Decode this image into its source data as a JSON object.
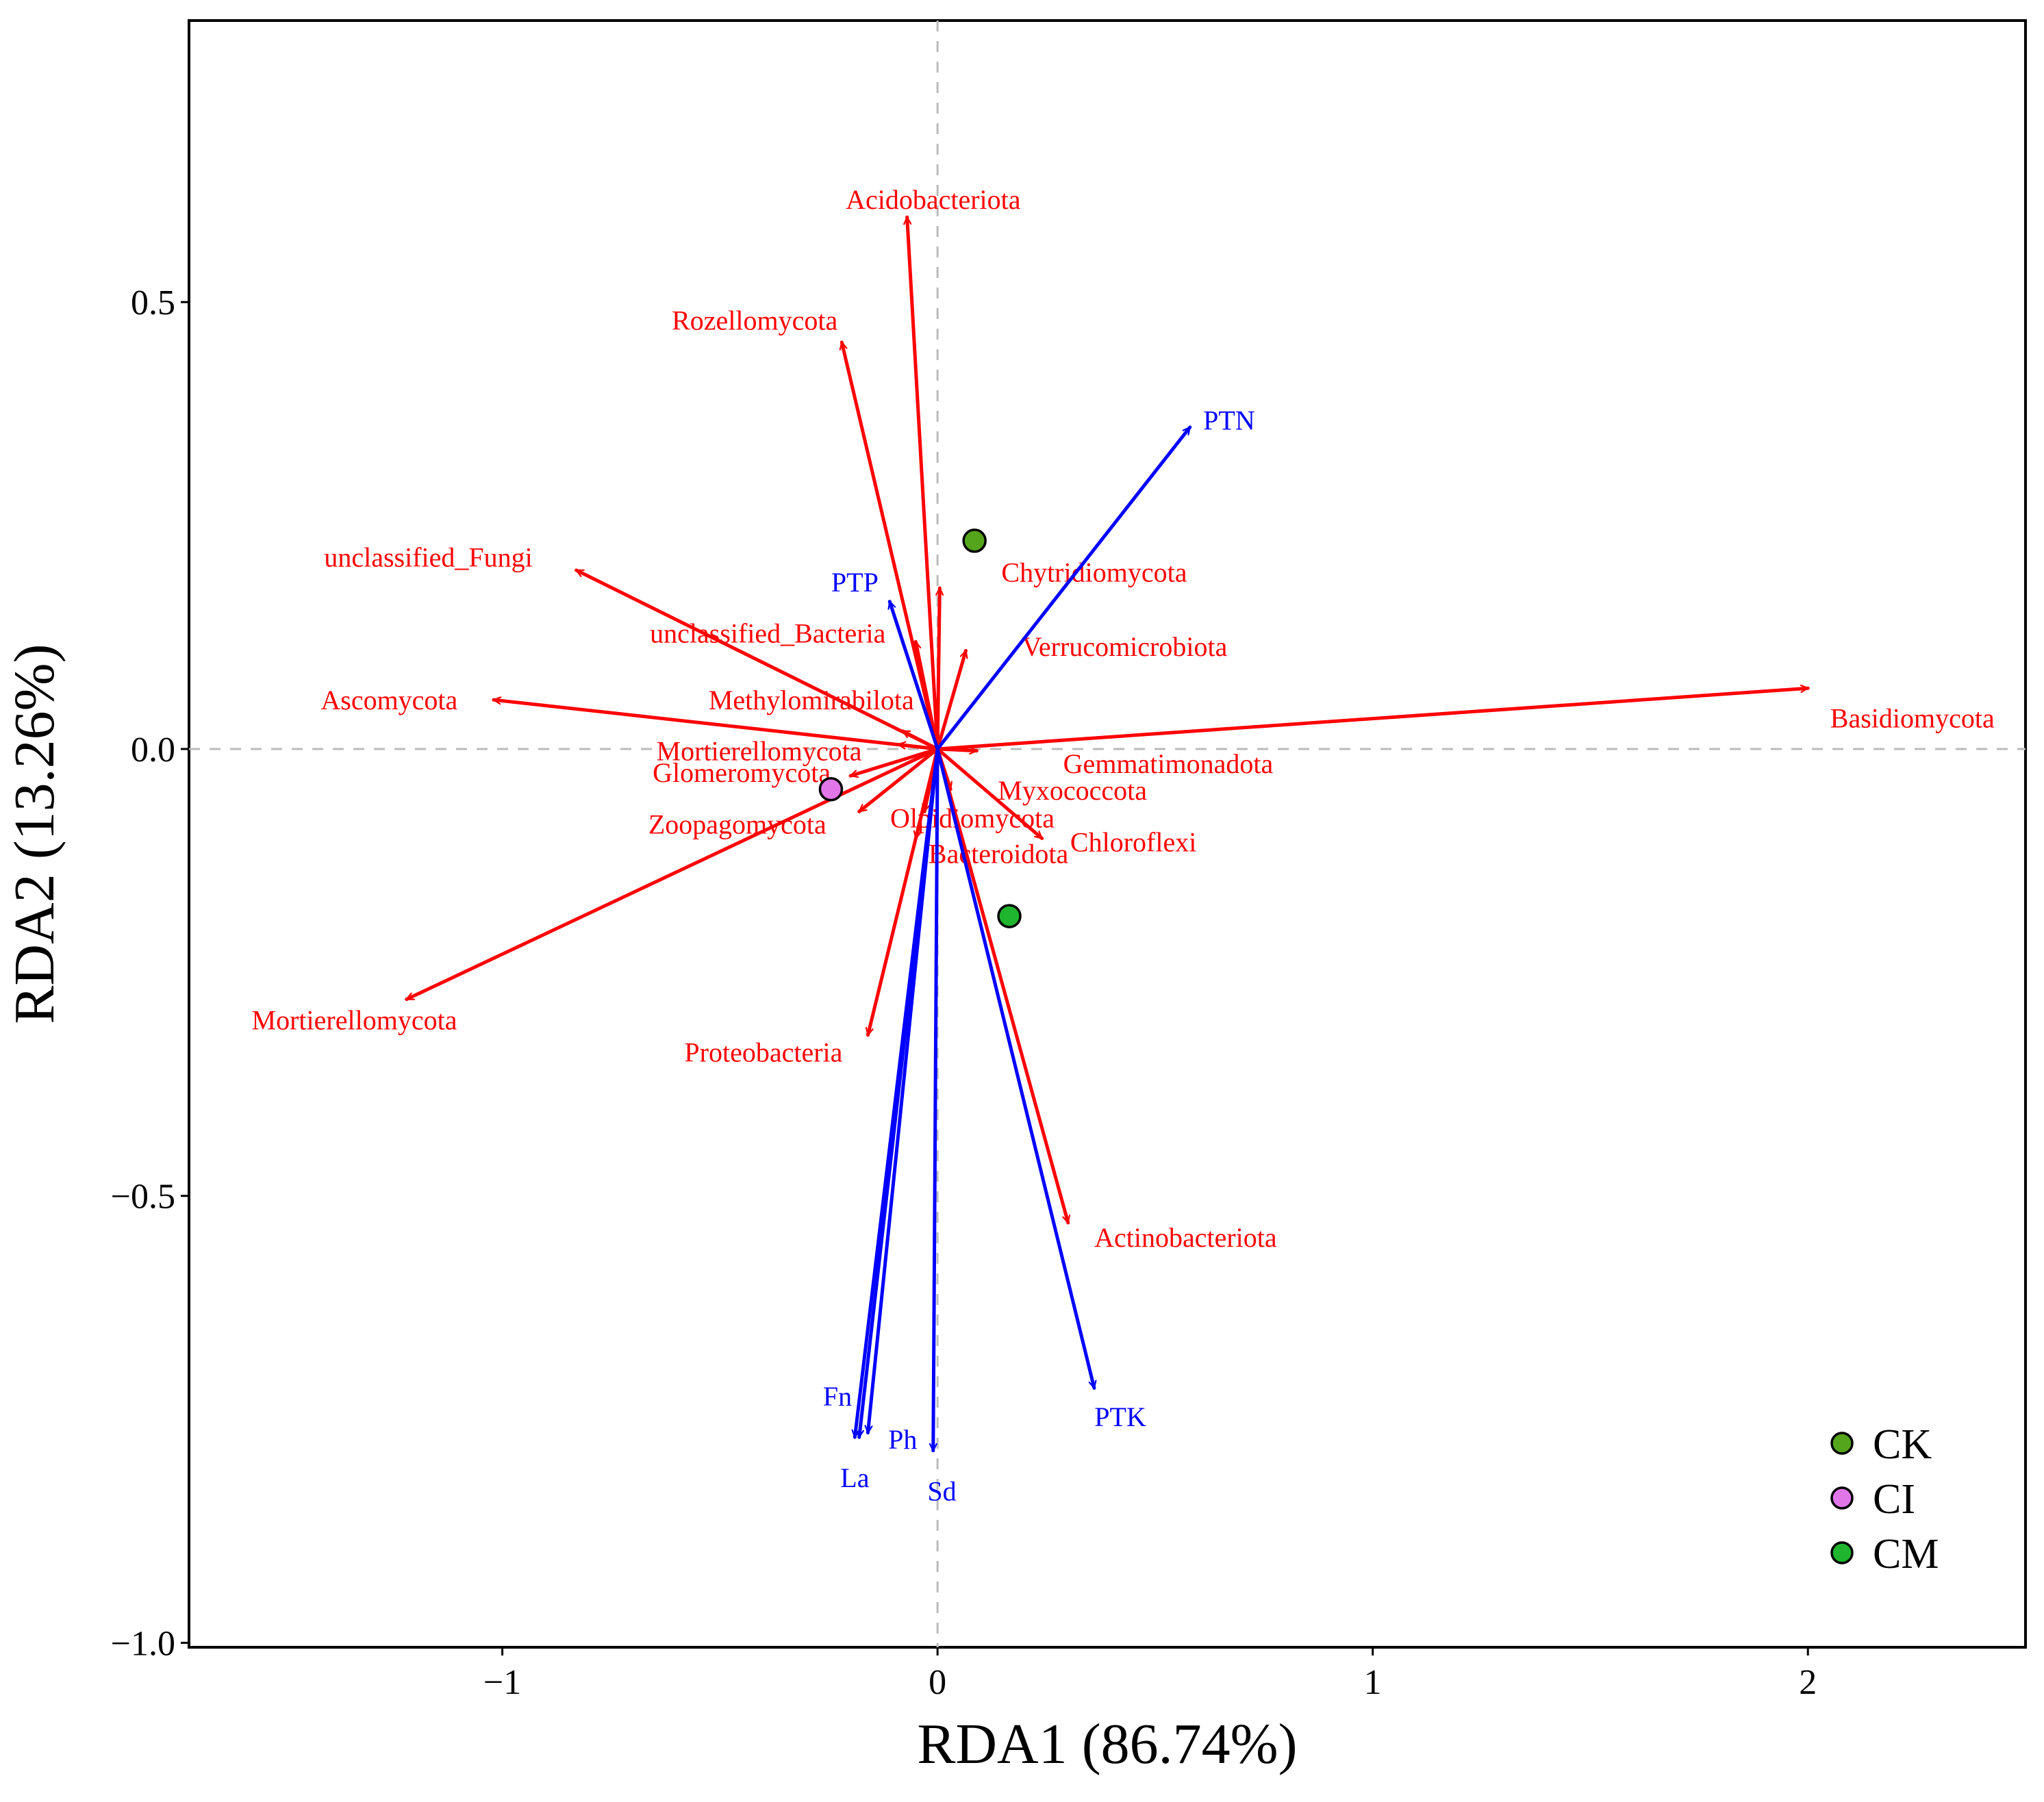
{
  "chart_data": {
    "type": "scatter",
    "subtype": "rda-biplot",
    "xlabel": "RDA1 (86.74%)",
    "ylabel": "RDA2 (13.26%)",
    "xlim": [
      -1.72,
      2.5
    ],
    "ylim": [
      -1.005,
      0.815
    ],
    "x_ticks": [
      {
        "value": -1,
        "label": "−1"
      },
      {
        "value": 0,
        "label": "0"
      },
      {
        "value": 1,
        "label": "1"
      },
      {
        "value": 2,
        "label": "2"
      }
    ],
    "y_ticks": [
      {
        "value": -1,
        "label": "−1.0"
      },
      {
        "value": -0.5,
        "label": "−0.5"
      },
      {
        "value": 0,
        "label": "0.0"
      },
      {
        "value": 0.5,
        "label": "0.5"
      }
    ],
    "reference_lines": [
      {
        "axis": "x",
        "value": 0
      },
      {
        "axis": "y",
        "value": 0
      }
    ],
    "colors": {
      "species": "#ff0000",
      "environment": "#0000ff",
      "reference": "#bbbbbb"
    },
    "species_vectors": [
      {
        "name": "Acidobacteriota",
        "x": -0.07,
        "y": 0.595,
        "lx": -0.01,
        "ly": 0.615
      },
      {
        "name": "Rozellomycota",
        "x": -0.22,
        "y": 0.455,
        "lx": -0.42,
        "ly": 0.48
      },
      {
        "name": "unclassified_Fungi",
        "x": -0.83,
        "y": 0.2,
        "lx": -1.17,
        "ly": 0.215
      },
      {
        "name": "unclassified_Bacteria",
        "x": -0.05,
        "y": 0.12,
        "lx": -0.39,
        "ly": 0.13
      },
      {
        "name": "Chytridiomycota",
        "x": 0.005,
        "y": 0.18,
        "lx": 0.36,
        "ly": 0.198
      },
      {
        "name": "Verrucomicrobiota",
        "x": 0.065,
        "y": 0.11,
        "lx": 0.43,
        "ly": 0.115
      },
      {
        "name": "Ascomycota",
        "x": -1.02,
        "y": 0.055,
        "lx": -1.26,
        "ly": 0.055
      },
      {
        "name": "Methylomirabilota",
        "x": -0.08,
        "y": 0.02,
        "lx": -0.29,
        "ly": 0.055
      },
      {
        "name": "Basidiomycota",
        "x": 2.0,
        "y": 0.068,
        "lx": 2.24,
        "ly": 0.035
      },
      {
        "name": "Mortierellomycota",
        "x": -0.09,
        "y": 0.005,
        "lx": -0.41,
        "ly": -0.002
      },
      {
        "name": "Gemmatimonadota",
        "x": 0.09,
        "y": -0.002,
        "lx": 0.53,
        "ly": -0.016
      },
      {
        "name": "Glomeromycota",
        "x": -0.2,
        "y": -0.03,
        "lx": -0.45,
        "ly": -0.026
      },
      {
        "name": "Myxococcota",
        "x": 0.03,
        "y": -0.045,
        "lx": 0.31,
        "ly": -0.046
      },
      {
        "name": "Zoopagomycota",
        "x": -0.18,
        "y": -0.07,
        "lx": -0.46,
        "ly": -0.084
      },
      {
        "name": "Olpidiomycota",
        "x": -0.03,
        "y": -0.07,
        "lx": 0.08,
        "ly": -0.077
      },
      {
        "name": "Chloroflexi",
        "x": 0.24,
        "y": -0.1,
        "lx": 0.45,
        "ly": -0.104
      },
      {
        "name": "Bacteroidota",
        "x": -0.05,
        "y": -0.1,
        "lx": 0.14,
        "ly": -0.117
      },
      {
        "name": "Mortierellomycota",
        "x": -1.22,
        "y": -0.28,
        "lx": -1.34,
        "ly": -0.303
      },
      {
        "name": "Proteobacteria",
        "x": -0.16,
        "y": -0.32,
        "lx": -0.4,
        "ly": -0.339
      },
      {
        "name": "Actinobacteriota",
        "x": 0.3,
        "y": -0.53,
        "lx": 0.57,
        "ly": -0.546
      }
    ],
    "environment_vectors": [
      {
        "name": "PTN",
        "x": 0.58,
        "y": 0.36,
        "lx": 0.67,
        "ly": 0.368
      },
      {
        "name": "PTP",
        "x": -0.11,
        "y": 0.165,
        "lx": -0.19,
        "ly": 0.187
      },
      {
        "name": "Fn",
        "x": -0.19,
        "y": -0.77,
        "lx": -0.23,
        "ly": -0.724
      },
      {
        "name": "La",
        "x": -0.18,
        "y": -0.77,
        "lx": -0.19,
        "ly": -0.815
      },
      {
        "name": "Ph",
        "x": -0.16,
        "y": -0.765,
        "lx": -0.08,
        "ly": -0.772
      },
      {
        "name": "Sd",
        "x": -0.01,
        "y": -0.785,
        "lx": 0.01,
        "ly": -0.83
      },
      {
        "name": "PTK",
        "x": 0.36,
        "y": -0.715,
        "lx": 0.42,
        "ly": -0.747
      }
    ],
    "points": [
      {
        "group": "CK",
        "x": 0.085,
        "y": 0.233,
        "color": "#55a51c"
      },
      {
        "group": "CI",
        "x": -0.245,
        "y": -0.045,
        "color": "#e176e8"
      },
      {
        "group": "CM",
        "x": 0.165,
        "y": -0.187,
        "color": "#1fb52e"
      }
    ],
    "legend": {
      "position": "bottom-right",
      "items": [
        {
          "label": "CK",
          "color": "#55a51c"
        },
        {
          "label": "CI",
          "color": "#e176e8"
        },
        {
          "label": "CM",
          "color": "#1fb52e"
        }
      ]
    }
  }
}
